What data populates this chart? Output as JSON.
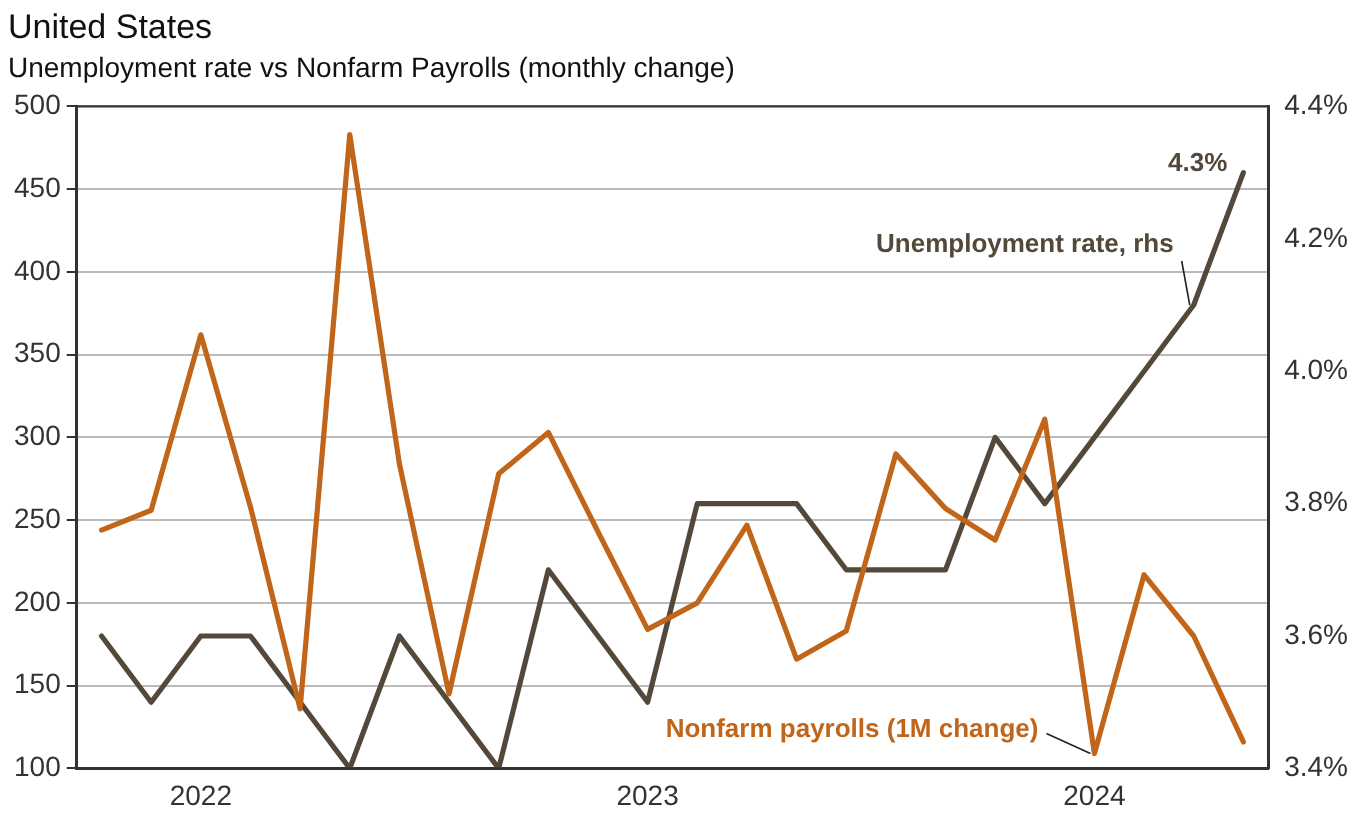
{
  "chart_data": {
    "type": "line",
    "title": "United States",
    "subtitle": "Unemployment rate vs Nonfarm Payrolls (monthly change)",
    "categories": [
      null,
      null,
      "2022",
      null,
      null,
      null,
      null,
      null,
      null,
      null,
      null,
      "2023",
      null,
      null,
      null,
      null,
      null,
      null,
      null,
      null,
      "2024",
      null,
      null,
      null
    ],
    "series": [
      {
        "name": "Nonfarm payrolls (1M change)",
        "color": "#c0651a",
        "values": [
          244,
          256,
          362,
          258,
          136,
          483,
          284,
          145,
          278,
          303,
          243,
          184,
          200,
          247,
          166,
          183,
          290,
          257,
          238,
          311,
          109,
          217,
          180,
          116
        ]
      },
      {
        "name": "Unemployment rate, rhs",
        "color": "#54483a",
        "axis": "y2",
        "values": [
          3.6,
          3.5,
          3.6,
          3.6,
          3.5,
          3.4,
          3.6,
          3.5,
          3.4,
          3.7,
          3.6,
          3.5,
          3.8,
          3.8,
          3.8,
          3.7,
          3.7,
          3.7,
          3.9,
          3.8,
          3.9,
          4.0,
          4.1,
          4.3
        ],
        "value_labels": [
          null,
          null,
          null,
          null,
          null,
          null,
          null,
          null,
          null,
          null,
          null,
          null,
          null,
          null,
          null,
          null,
          null,
          null,
          null,
          null,
          null,
          null,
          null,
          "4.3%"
        ]
      }
    ],
    "ylim": [
      100,
      500
    ],
    "yticks": [
      100,
      150,
      200,
      250,
      300,
      350,
      400,
      450,
      500
    ],
    "y2lim": [
      3.4,
      4.4
    ],
    "y2ticks": [
      {
        "value": 3.4,
        "label": "3.4%"
      },
      {
        "value": 3.6,
        "label": "3.6%"
      },
      {
        "value": 3.8,
        "label": "3.8%"
      },
      {
        "value": 4.0,
        "label": "4.0%"
      },
      {
        "value": 4.2,
        "label": "4.2%"
      },
      {
        "value": 4.4,
        "label": "4.4%"
      }
    ],
    "grid": "y",
    "legend": false,
    "marker": "none",
    "line_style": "solid"
  }
}
